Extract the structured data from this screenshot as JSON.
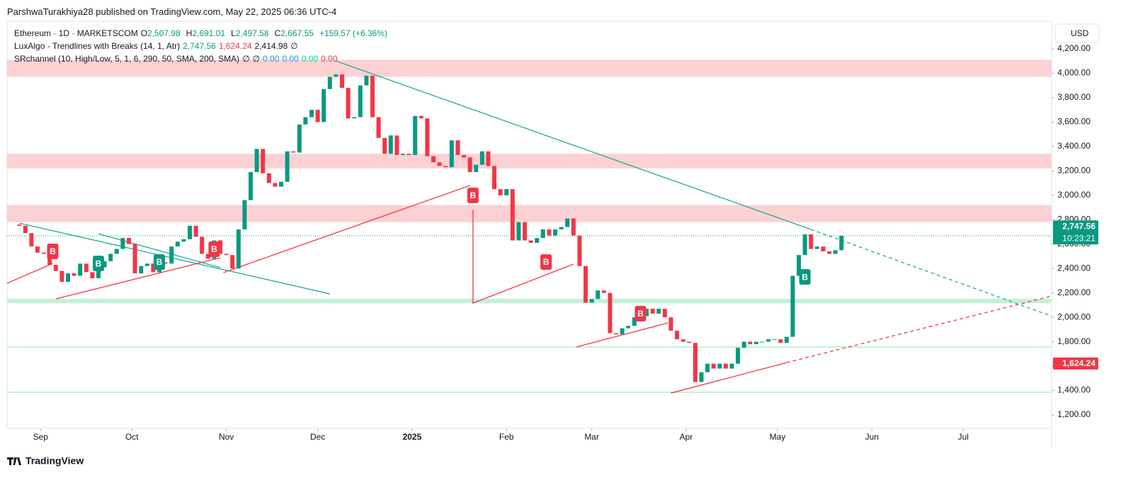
{
  "header": {
    "publisher": "ParshwaTurakhiya28 published on TradingView.com, May 22, 2025 06:36 UTC-4"
  },
  "legend": {
    "symbol": "Ethereum · 1D · MARKETSCOM",
    "ohlc": [
      {
        "key": "O",
        "value": "2,507.98"
      },
      {
        "key": "H",
        "value": "2,691.01"
      },
      {
        "key": "L",
        "value": "2,497.58"
      },
      {
        "key": "C",
        "value": "2,667.55"
      }
    ],
    "change": "+159.57 (+6.36%)",
    "indicator1": "LuxAlgo - Trendlines with Breaks (14, 1, Atr)",
    "indicator1_values": [
      {
        "text": "2,747.56",
        "color": "#089981"
      },
      {
        "text": "1,624.24",
        "color": "#f23645"
      },
      {
        "text": "2,414.98",
        "color": "#131722"
      },
      {
        "text": "∅",
        "color": "#131722"
      }
    ],
    "indicator2": "SRchannel (10, High/Low, 5, 1, 6, 290, 50, SMA, 200, SMA)",
    "indicator2_values": [
      {
        "text": "∅",
        "color": "#131722"
      },
      {
        "text": "∅",
        "color": "#131722"
      },
      {
        "text": "0.00",
        "color": "#2196f3"
      },
      {
        "text": "0.00",
        "color": "#2196f3"
      },
      {
        "text": "0.00",
        "color": "#00e676"
      },
      {
        "text": "0.00",
        "color": "#f23645"
      }
    ]
  },
  "currency": "USD",
  "footer": {
    "brand": "TradingView"
  },
  "chart_data": {
    "type": "candlestick",
    "up_color": "#089981",
    "down_color": "#f23645",
    "x": [
      0,
      2,
      4,
      6,
      8,
      10,
      12,
      14,
      16,
      18,
      20,
      22,
      24,
      26,
      28,
      30,
      32,
      34,
      36,
      38,
      40,
      42,
      44,
      46,
      48,
      50,
      52,
      54,
      56,
      58,
      60,
      62,
      64,
      66,
      68,
      70,
      72,
      74,
      76,
      78,
      80,
      82,
      84,
      86,
      88,
      90,
      92,
      94,
      96,
      98,
      100,
      102,
      104,
      106,
      108,
      110,
      112,
      114,
      116,
      118,
      120,
      122,
      124,
      126,
      128,
      130,
      132,
      134,
      136,
      138,
      140,
      142,
      144,
      146,
      148,
      150,
      152,
      154,
      156,
      158,
      160,
      162,
      164,
      166,
      168,
      170,
      172,
      174,
      176,
      178,
      180,
      182,
      184,
      186,
      188,
      190,
      192,
      194,
      196,
      198,
      200,
      202,
      204,
      206,
      208,
      210,
      212,
      214,
      216,
      218,
      220,
      222,
      224,
      226,
      228,
      230,
      232,
      234,
      236,
      238,
      240,
      242,
      244,
      246,
      248,
      250,
      252,
      254,
      256,
      258,
      260,
      262,
      264,
      266,
      268,
      270,
      272
    ],
    "values": [
      2760,
      2750,
      2690,
      2580,
      2530,
      2520,
      2430,
      2380,
      2290,
      2360,
      2340,
      2440,
      2370,
      2320,
      2410,
      2460,
      2520,
      2560,
      2650,
      2600,
      2360,
      2420,
      2440,
      2370,
      2450,
      2440,
      2580,
      2620,
      2640,
      2750,
      2660,
      2520,
      2480,
      2630,
      2520,
      2510,
      2400,
      2720,
      2960,
      3190,
      3380,
      3180,
      3100,
      3070,
      3110,
      3360,
      3350,
      3580,
      3640,
      3700,
      3600,
      3870,
      3970,
      3990,
      3880,
      3630,
      3640,
      3900,
      3980,
      3640,
      3470,
      3340,
      3490,
      3330,
      3340,
      3330,
      3650,
      3630,
      3320,
      3270,
      3240,
      3230,
      3450,
      3330,
      3310,
      3190,
      3250,
      3360,
      3240,
      3050,
      3000,
      3050,
      2630,
      2780,
      2630,
      2610,
      2650,
      2720,
      2670,
      2720,
      2740,
      2810,
      2670,
      2420,
      2120,
      2150,
      2220,
      2200,
      1870,
      1860,
      1910,
      1930,
      2000,
      2010,
      2070,
      2030,
      2070,
      2000,
      1890,
      1820,
      1800,
      1790,
      1470,
      1550,
      1620,
      1580,
      1620,
      1580,
      1620,
      1750,
      1800,
      1780,
      1800,
      1800,
      1820,
      1820,
      1790,
      1840,
      2340,
      2510,
      2680,
      2560,
      2580,
      2540,
      2520,
      2550,
      2668
    ],
    "xlim": [
      -2,
      341
    ],
    "ylim": [
      1090,
      4426
    ],
    "xticks": [
      {
        "value": 9,
        "label": "Sep"
      },
      {
        "value": 39,
        "label": "Oct"
      },
      {
        "value": 70,
        "label": "Nov"
      },
      {
        "value": 100,
        "label": "Dec"
      },
      {
        "value": 131,
        "label": "2025"
      },
      {
        "value": 162,
        "label": "Feb"
      },
      {
        "value": 190,
        "label": "Mar"
      },
      {
        "value": 221,
        "label": "Apr"
      },
      {
        "value": 251,
        "label": "May"
      },
      {
        "value": 282,
        "label": "Jun"
      },
      {
        "value": 312,
        "label": "Jul"
      }
    ],
    "yticks": [
      {
        "value": 1200,
        "label": "1,200.00"
      },
      {
        "value": 1400,
        "label": "1,400.00"
      },
      {
        "value": 1600,
        "label": "1,600.00"
      },
      {
        "value": 1800,
        "label": "1,800.00"
      },
      {
        "value": 2000,
        "label": "2,000.00"
      },
      {
        "value": 2200,
        "label": "2,200.00"
      },
      {
        "value": 2400,
        "label": "2,400.00"
      },
      {
        "value": 2600,
        "label": "2,600.00"
      },
      {
        "value": 2800,
        "label": "2,800.00"
      },
      {
        "value": 3000,
        "label": "3,000.00"
      },
      {
        "value": 3200,
        "label": "3,200.00"
      },
      {
        "value": 3400,
        "label": "3,400.00"
      },
      {
        "value": 3600,
        "label": "3,600.00"
      },
      {
        "value": 3800,
        "label": "3,800.00"
      },
      {
        "value": 4000,
        "label": "4,000.00"
      },
      {
        "value": 4200,
        "label": "4,200.00"
      }
    ],
    "zones": [
      {
        "color": "#fcc9cc",
        "range": [
          3970,
          4110
        ]
      },
      {
        "color": "#fcc9cc",
        "range": [
          3220,
          3340
        ]
      },
      {
        "color": "#fcc9cc",
        "range": [
          2780,
          2920
        ]
      },
      {
        "color": "#b4f0d0",
        "range": [
          2116,
          2151
        ]
      },
      {
        "color": "#b4f0d0",
        "range": [
          1750,
          1762
        ]
      },
      {
        "color": "#b4f0d0",
        "range": [
          1380,
          1392
        ]
      }
    ],
    "trendlines": [
      {
        "color": "#22ab94",
        "dashed": false,
        "x": [
          106,
          262
        ],
        "y": [
          4100,
          2720
        ]
      },
      {
        "color": "#22ab94",
        "dashed": true,
        "x": [
          262,
          341
        ],
        "y": [
          2720,
          2010
        ]
      },
      {
        "color": "#22ab94",
        "dashed": false,
        "x": [
          2,
          104
        ],
        "y": [
          2772,
          2192
        ]
      },
      {
        "color": "#22ab94",
        "dashed": false,
        "x": [
          28,
          68
        ],
        "y": [
          2685,
          2407
        ]
      },
      {
        "color": "#f23645",
        "dashed": false,
        "x": [
          -2,
          13
        ],
        "y": [
          2279,
          2441
        ]
      },
      {
        "color": "#f23645",
        "dashed": false,
        "x": [
          14,
          68
        ],
        "y": [
          2151,
          2488
        ]
      },
      {
        "color": "#f23645",
        "dashed": false,
        "x": [
          69,
          150
        ],
        "y": [
          2366,
          3080
        ]
      },
      {
        "color": "#f23645",
        "dashed": false,
        "x": [
          151,
          151,
          184
        ],
        "y": [
          2880,
          2116,
          2436
        ]
      },
      {
        "color": "#f23645",
        "dashed": false,
        "x": [
          185,
          215
        ],
        "y": [
          1757,
          1954
        ]
      },
      {
        "color": "#f23645",
        "dashed": false,
        "x": [
          216,
          254
        ],
        "y": [
          1379,
          1629
        ]
      },
      {
        "color": "#f23645",
        "dashed": true,
        "x": [
          254,
          341
        ],
        "y": [
          1629,
          2174
        ]
      }
    ],
    "markers": [
      {
        "text": "B",
        "color": "#f23645",
        "x": 13,
        "y": 2540
      },
      {
        "text": "B",
        "color": "#089981",
        "x": 28,
        "y": 2441
      },
      {
        "text": "B",
        "color": "#089981",
        "x": 48,
        "y": 2453
      },
      {
        "text": "B",
        "color": "#f23645",
        "x": 66,
        "y": 2558
      },
      {
        "text": "B",
        "color": "#f23645",
        "x": 151,
        "y": 2999
      },
      {
        "text": "B",
        "color": "#f23645",
        "x": 175,
        "y": 2453
      },
      {
        "text": "B",
        "color": "#f23645",
        "x": 206,
        "y": 2030
      },
      {
        "text": "B",
        "color": "#089981",
        "x": 260,
        "y": 2331
      }
    ],
    "price_tags": [
      {
        "value": 2747.56,
        "label": "2,747.56",
        "sub": "10:23:21",
        "color": "#089981"
      },
      {
        "value": 1624.24,
        "label": "1,624.24",
        "color": "#f23645"
      }
    ]
  }
}
